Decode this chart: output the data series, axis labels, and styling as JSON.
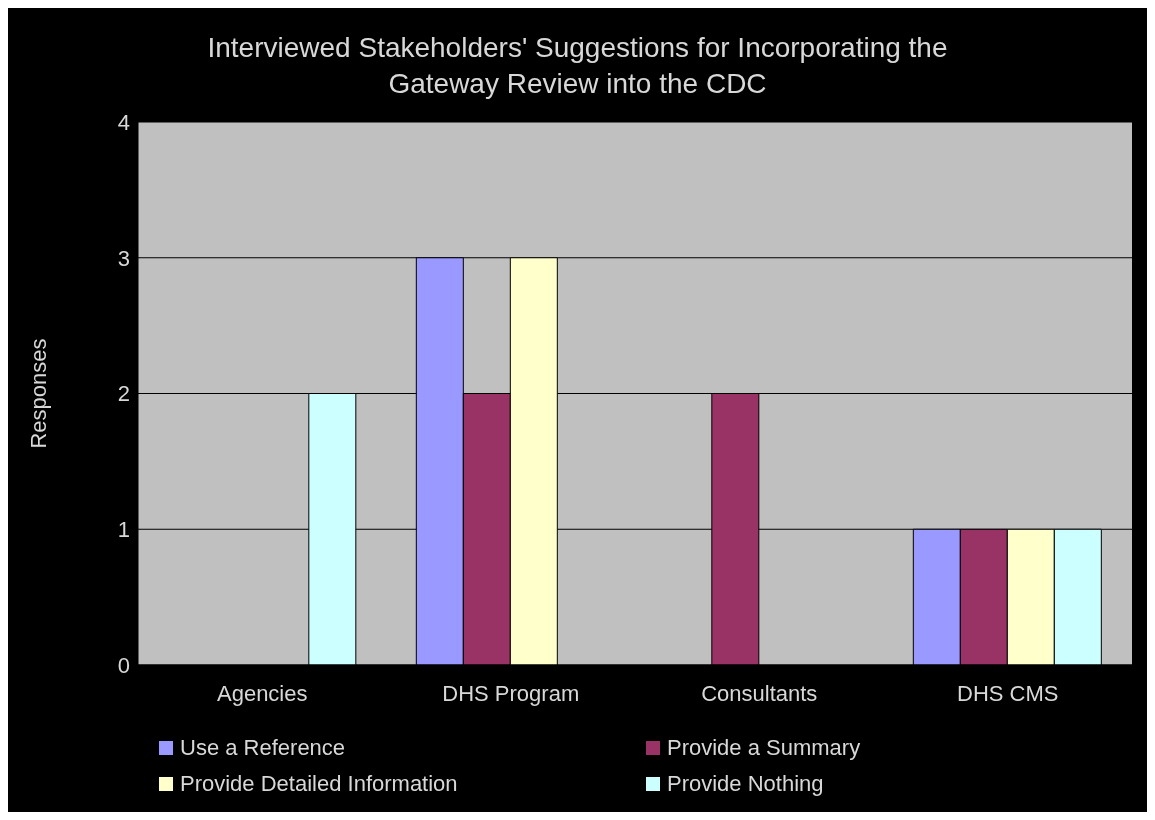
{
  "chart_data": {
    "type": "bar",
    "title": "Interviewed Stakeholders' Suggestions for Incorporating the Gateway Review into the CDC",
    "ylabel": "Responses",
    "categories": [
      "Agencies",
      "DHS Program",
      "Consultants",
      "DHS CMS"
    ],
    "series": [
      {
        "name": "Use a Reference",
        "color": "#9999ff",
        "values": [
          0,
          3,
          0,
          1
        ]
      },
      {
        "name": "Provide a Summary",
        "color": "#993366",
        "values": [
          0,
          2,
          2,
          1
        ]
      },
      {
        "name": "Provide Detailed Information",
        "color": "#ffffcc",
        "values": [
          0,
          3,
          0,
          1
        ]
      },
      {
        "name": "Provide Nothing",
        "color": "#ccffff",
        "values": [
          2,
          0,
          0,
          1
        ]
      }
    ],
    "ylim": [
      0,
      4
    ],
    "yticks": [
      0,
      1,
      2,
      3,
      4
    ],
    "grid": "y",
    "legend": "bottom"
  }
}
